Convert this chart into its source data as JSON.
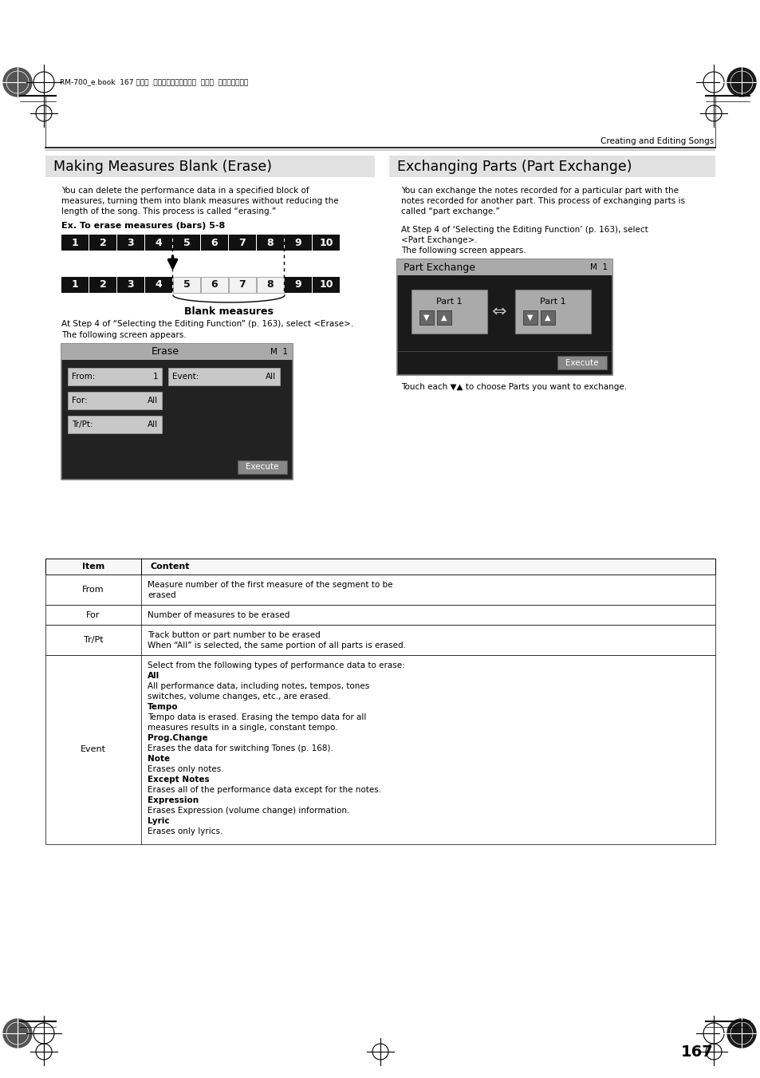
{
  "page_num": "167",
  "header_text": "RM-700_e.book  167 ページ  ２００９年３月１８日  水曜日  午前１１時５分",
  "top_right_label": "Creating and Editing Songs",
  "left_section_title": "Making Measures Blank (Erase)",
  "left_intro_lines": [
    "You can delete the performance data in a specified block of",
    "measures, turning them into blank measures without reducing the",
    "length of the song. This process is called “erasing.”"
  ],
  "ex_label": "Ex. To erase measures (bars) 5-8",
  "measures_row1": [
    "1",
    "2",
    "3",
    "4",
    "5",
    "6",
    "7",
    "8",
    "9",
    "10"
  ],
  "blank_measures_label": "Blank measures",
  "erase_text1": "At Step 4 of “Selecting the Editing Function” (p. 163), select <Erase>.",
  "erase_text2": "The following screen appears.",
  "erase_screen": {
    "title": "Erase",
    "measure_indicator": "M  1",
    "from_label": "From:",
    "from_value": "1",
    "event_label": "Event:",
    "event_value": "All",
    "for_label": "For:",
    "for_value": "All",
    "trpt_label": "Tr/Pt:",
    "trpt_value": "All",
    "execute_btn": "Execute"
  },
  "right_section_title": "Exchanging Parts (Part Exchange)",
  "right_intro_lines": [
    "You can exchange the notes recorded for a particular part with the",
    "notes recorded for another part. This process of exchanging parts is",
    "called “part exchange.”"
  ],
  "right_text1_lines": [
    "At Step 4 of ‘Selecting the Editing Function’ (p. 163), select",
    "<Part Exchange>."
  ],
  "right_text2": "The following screen appears.",
  "part_exchange_screen": {
    "title": "Part Exchange",
    "measure_indicator": "M  1",
    "part1_left": "Part 1",
    "part1_right": "Part 1",
    "execute_btn": "Execute"
  },
  "right_touch_text": "Touch each ▼▲ to choose Parts you want to exchange.",
  "table_header": [
    "Item",
    "Content"
  ],
  "table_rows": [
    [
      "From",
      [
        "Measure number of the first measure of the segment to be",
        "erased"
      ]
    ],
    [
      "For",
      [
        "Number of measures to be erased"
      ]
    ],
    [
      "Tr/Pt",
      [
        "Track button or part number to be erased",
        "When “All” is selected, the same portion of all parts is erased."
      ]
    ],
    [
      "Event",
      []
    ]
  ],
  "event_content": [
    [
      "Select from the following types of performance data to erase:",
      false
    ],
    [
      "All",
      true
    ],
    [
      "All performance data, including notes, tempos, tones",
      false
    ],
    [
      "switches, volume changes, etc., are erased.",
      false
    ],
    [
      "Tempo",
      true
    ],
    [
      "Tempo data is erased. Erasing the tempo data for all",
      false
    ],
    [
      "measures results in a single, constant tempo.",
      false
    ],
    [
      "Prog.Change",
      true
    ],
    [
      "Erases the data for switching Tones (p. 168).",
      false
    ],
    [
      "Note",
      true
    ],
    [
      "Erases only notes.",
      false
    ],
    [
      "Except Notes",
      true
    ],
    [
      "Erases all of the performance data except for the notes.",
      false
    ],
    [
      "Expression",
      true
    ],
    [
      "Erases Expression (volume change) information.",
      false
    ],
    [
      "Lyric",
      true
    ],
    [
      "Erases only lyrics.",
      false
    ]
  ],
  "bg_color": "#ffffff"
}
